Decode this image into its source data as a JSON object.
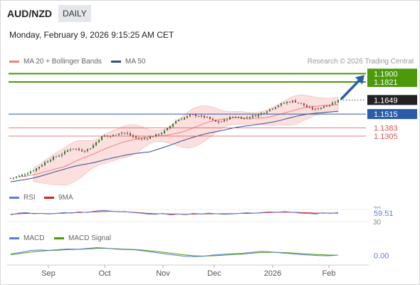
{
  "header": {
    "pair": "AUD/NZD",
    "timeframe": "DAILY",
    "datetime": "Monday, February 9, 2026 9:15:25 AM CET"
  },
  "legend": {
    "ma20_label": "MA 20 + Bollinger Bands",
    "ma50_label": "MA 50",
    "credit": "Research © 2026 Trading Central"
  },
  "colors": {
    "candle_up": "#2e7d32",
    "candle_down": "#c62828",
    "ma20": "#f08080",
    "bollinger_fill": "#fbd9d9",
    "ma50": "#2f4f8f",
    "resistance": "#4a9a0a",
    "support": "#e05252",
    "pivot": "#2a5caa",
    "rsi": "#5b7fd6",
    "rsi_ma": "#d32020",
    "macd": "#5b7fd6",
    "macd_signal": "#4a9a0a"
  },
  "chart_data": [
    {
      "type": "candlestick",
      "title": "AUD/NZD",
      "x_ticks": [
        "Sep",
        "Oct",
        "Nov",
        "Dec",
        "2026",
        "Feb"
      ],
      "ylim": [
        1.085,
        1.195
      ],
      "series": [
        {
          "name": "MA 20 + Bollinger Bands"
        },
        {
          "name": "MA 50"
        }
      ],
      "close_path": [
        1.0905,
        1.0915,
        1.0925,
        1.094,
        1.096,
        1.098,
        1.1005,
        1.1035,
        1.1065,
        1.109,
        1.111,
        1.1125,
        1.115,
        1.118,
        1.119,
        1.1175,
        1.1165,
        1.1175,
        1.12,
        1.1245,
        1.129,
        1.131,
        1.13,
        1.1315,
        1.1335,
        1.134,
        1.1325,
        1.1305,
        1.1285,
        1.1275,
        1.1285,
        1.1295,
        1.131,
        1.1325,
        1.1345,
        1.1375,
        1.142,
        1.1455,
        1.147,
        1.1485,
        1.1505,
        1.1505,
        1.1495,
        1.1488,
        1.1478,
        1.1455,
        1.1435,
        1.1445,
        1.1465,
        1.1485,
        1.149,
        1.1482,
        1.1475,
        1.1485,
        1.1495,
        1.1505,
        1.1525,
        1.1545,
        1.1565,
        1.1588,
        1.1605,
        1.162,
        1.1635,
        1.164,
        1.1625,
        1.161,
        1.158,
        1.1565,
        1.156,
        1.1575,
        1.1595,
        1.1605,
        1.1625,
        1.1649
      ],
      "levels": [
        {
          "label": "1.1900",
          "value": 1.19,
          "kind": "resistance"
        },
        {
          "label": "1.1821",
          "value": 1.1821,
          "kind": "resistance"
        },
        {
          "label": "1.1649",
          "value": 1.1649,
          "kind": "last"
        },
        {
          "label": "1.1515",
          "value": 1.1515,
          "kind": "pivot"
        },
        {
          "label": "1.1383",
          "value": 1.1383,
          "kind": "support"
        },
        {
          "label": "1.1305",
          "value": 1.1305,
          "kind": "support"
        }
      ],
      "projection": {
        "from": 1.1649,
        "to": 1.19
      }
    },
    {
      "type": "line",
      "title": "RSI",
      "series": [
        {
          "name": "RSI"
        },
        {
          "name": "9MA"
        }
      ],
      "ylim": [
        30,
        70
      ],
      "y_ticks": [
        "70",
        "30"
      ],
      "last_value": "59.51",
      "rsi_path": [
        52,
        58,
        60,
        56,
        57,
        55,
        57,
        60,
        58,
        62,
        60,
        64,
        67,
        65,
        62,
        63,
        60,
        58,
        55,
        54,
        57,
        52,
        55,
        53,
        57,
        55,
        58,
        56,
        54,
        55,
        57,
        59,
        58,
        60,
        62,
        61,
        63,
        61,
        58,
        57,
        55,
        59,
        57,
        60
      ],
      "ma_path": [
        54,
        56,
        57,
        57,
        57,
        56,
        57,
        58,
        59,
        60,
        61,
        62,
        63,
        64,
        63,
        62,
        61,
        59,
        57,
        56,
        56,
        55,
        55,
        54,
        55,
        55,
        56,
        56,
        56,
        56,
        57,
        57,
        58,
        59,
        60,
        61,
        61,
        61,
        60,
        59,
        58,
        58,
        58,
        58
      ]
    },
    {
      "type": "line",
      "title": "MACD",
      "series": [
        {
          "name": "MACD"
        },
        {
          "name": "MACD Signal"
        }
      ],
      "ylim": [
        -0.006,
        0.006
      ],
      "last_value": "0.00",
      "macd_path": [
        0.0008,
        0.0015,
        0.0025,
        0.0028,
        0.0026,
        0.003,
        0.0033,
        0.0032,
        0.0036,
        0.004,
        0.0037,
        0.0032,
        0.003,
        0.0028,
        0.0022,
        0.0015,
        0.0008,
        0.0002,
        -0.0004,
        -0.0006,
        -0.0004,
        0.0002,
        0.0006,
        0.0009,
        0.0011,
        0.0016,
        0.0021,
        0.0018,
        0.0013,
        0.0009,
        0.0005,
        0.0002,
        -0.0001,
        -0.0002,
        0.0002
      ],
      "signal_path": [
        0.0003,
        0.001,
        0.0017,
        0.0022,
        0.0025,
        0.0027,
        0.003,
        0.0031,
        0.0033,
        0.0036,
        0.0036,
        0.0034,
        0.0032,
        0.003,
        0.0026,
        0.0021,
        0.0015,
        0.0009,
        0.0003,
        -0.0002,
        -0.0003,
        -0.0002,
        0.0001,
        0.0004,
        0.0007,
        0.0011,
        0.0015,
        0.0016,
        0.0015,
        0.0013,
        0.001,
        0.0007,
        0.0004,
        0.0002,
        0.0002
      ]
    }
  ]
}
